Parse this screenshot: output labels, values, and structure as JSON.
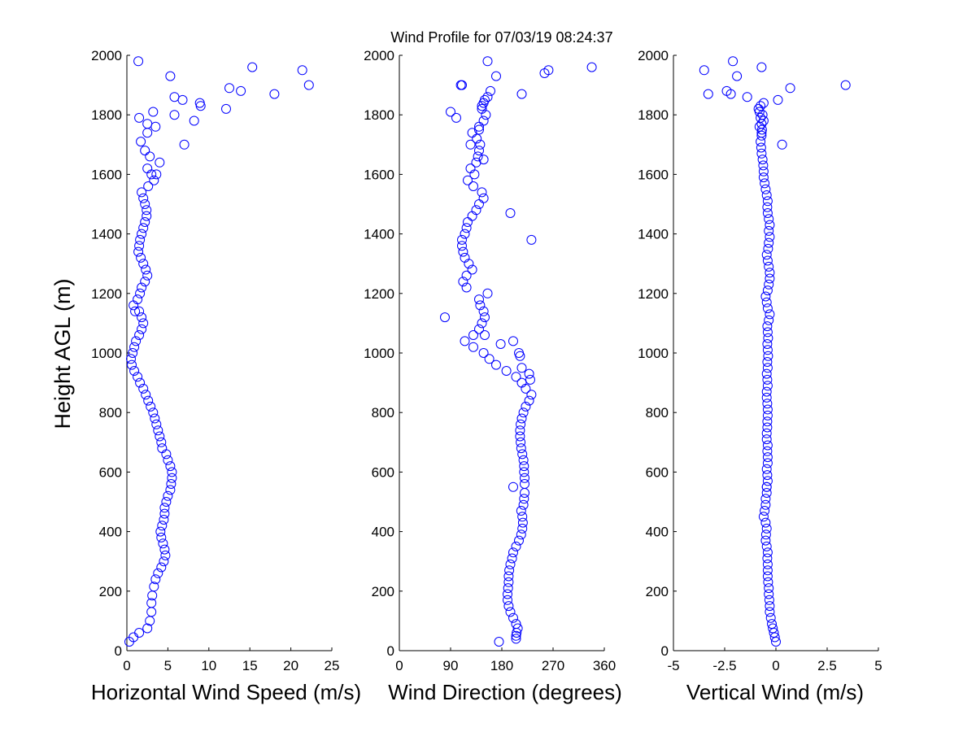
{
  "figure_title": "Wind Profile for  07/03/19 08:24:37",
  "shared_ylabel": "Height AGL (m)",
  "marker_color": "#0000ff",
  "chart_data": [
    {
      "type": "scatter",
      "xlabel": "Horizontal Wind Speed (m/s)",
      "ylabel": "Height AGL (m)",
      "xlim": [
        0,
        25
      ],
      "ylim": [
        0,
        2000
      ],
      "xticks": [
        0,
        5,
        10,
        15,
        20,
        25
      ],
      "xtick_labels": [
        "0",
        "5",
        "10",
        "15",
        "20",
        "25"
      ],
      "yticks": [
        0,
        200,
        400,
        600,
        800,
        1000,
        1200,
        1400,
        1600,
        1800,
        2000
      ],
      "ytick_labels": [
        "0",
        "200",
        "400",
        "600",
        "800",
        "1000",
        "1200",
        "1400",
        "1600",
        "1800",
        "2000"
      ],
      "grid": false,
      "marker": "open-circle",
      "series": [
        {
          "x": [
            0.3,
            0.8,
            1.5,
            2.5,
            2.8,
            3.0,
            3.0,
            3.1,
            3.3,
            3.5,
            3.8,
            4.2,
            4.5,
            4.7,
            4.6,
            4.4,
            4.2,
            4.1,
            4.3,
            4.5,
            4.6,
            4.6,
            4.8,
            5.0,
            5.3,
            5.4,
            5.5,
            5.5,
            5.3,
            5.0,
            4.8,
            4.3,
            4.2,
            4.0,
            3.8,
            3.6,
            3.4,
            3.2,
            2.9,
            2.6,
            2.3,
            2.0,
            1.6,
            1.3,
            0.9,
            0.6,
            0.5,
            0.7,
            0.9,
            1.1,
            1.5,
            1.8,
            2.0,
            1.8,
            1.5,
            1.0,
            0.8,
            1.3,
            1.6,
            1.8,
            2.2,
            2.5,
            2.3,
            2.0,
            1.7,
            1.4,
            1.5,
            1.6,
            1.8,
            2.0,
            2.2,
            2.4,
            2.4,
            2.2,
            2.0,
            1.8,
            2.6,
            3.3,
            3.0,
            3.6,
            4.0,
            2.5,
            2.8,
            2.2,
            1.7,
            2.5,
            3.5,
            1.5,
            2.5,
            3.2,
            5.8,
            8.2,
            9.0,
            5.8,
            6.8,
            7.0,
            12.1,
            8.9,
            12.5,
            13.9,
            18.0,
            21.4,
            22.2,
            15.3,
            5.3,
            1.4
          ],
          "y": [
            30,
            45,
            60,
            75,
            100,
            130,
            160,
            185,
            215,
            240,
            260,
            280,
            300,
            320,
            340,
            360,
            380,
            400,
            420,
            440,
            460,
            480,
            500,
            520,
            540,
            560,
            580,
            600,
            620,
            640,
            660,
            680,
            700,
            720,
            740,
            760,
            780,
            800,
            820,
            840,
            860,
            880,
            900,
            920,
            940,
            960,
            980,
            1000,
            1020,
            1040,
            1060,
            1080,
            1100,
            1120,
            1140,
            1140,
            1160,
            1180,
            1200,
            1220,
            1240,
            1260,
            1280,
            1300,
            1320,
            1340,
            1360,
            1380,
            1400,
            1420,
            1440,
            1460,
            1480,
            1500,
            1520,
            1540,
            1560,
            1580,
            1600,
            1600,
            1640,
            1620,
            1660,
            1680,
            1710,
            1740,
            1760,
            1790,
            1770,
            1810,
            1800,
            1780,
            1830,
            1860,
            1850,
            1700,
            1820,
            1840,
            1890,
            1880,
            1870,
            1950,
            1900,
            1960,
            1930,
            1980
          ]
        }
      ]
    },
    {
      "type": "scatter",
      "xlabel": "Wind Direction (degrees)",
      "ylabel": "",
      "xlim": [
        0,
        360
      ],
      "ylim": [
        0,
        2000
      ],
      "xticks": [
        0,
        90,
        180,
        270,
        360
      ],
      "xtick_labels": [
        "0",
        "90",
        "180",
        "270",
        "360"
      ],
      "yticks": [
        0,
        200,
        400,
        600,
        800,
        1000,
        1200,
        1400,
        1600,
        1800,
        2000
      ],
      "ytick_labels": [
        "0",
        "200",
        "400",
        "600",
        "800",
        "1000",
        "1200",
        "1400",
        "1600",
        "1800",
        "2000"
      ],
      "grid": false,
      "marker": "open-circle",
      "series": [
        {
          "x": [
            175,
            205,
            205,
            206,
            208,
            205,
            200,
            195,
            192,
            190,
            190,
            191,
            192,
            192,
            193,
            195,
            198,
            200,
            205,
            210,
            214,
            216,
            217,
            216,
            214,
            200,
            218,
            219,
            220,
            220,
            220,
            219,
            219,
            218,
            216,
            214,
            213,
            212,
            212,
            213,
            215,
            218,
            222,
            228,
            232,
            222,
            215,
            205,
            188,
            170,
            158,
            148,
            130,
            115,
            130,
            140,
            145,
            150,
            148,
            142,
            140,
            155,
            118,
            112,
            118,
            128,
            122,
            115,
            112,
            110,
            110,
            115,
            118,
            120,
            128,
            135,
            140,
            148,
            145,
            130,
            120,
            132,
            125,
            135,
            138,
            140,
            142,
            136,
            128,
            140,
            148,
            152,
            145,
            148,
            155,
            160,
            150,
            145,
            140,
            125,
            110,
            100,
            90,
            80,
            150,
            178,
            200,
            210,
            212,
            215,
            228,
            230,
            232,
            195,
            148,
            170,
            215,
            108,
            255,
            262,
            338,
            155
          ],
          "y": [
            30,
            40,
            50,
            60,
            75,
            90,
            110,
            130,
            150,
            170,
            190,
            210,
            230,
            250,
            270,
            290,
            310,
            330,
            350,
            370,
            390,
            410,
            430,
            450,
            470,
            550,
            490,
            510,
            530,
            560,
            580,
            600,
            620,
            640,
            660,
            680,
            700,
            720,
            740,
            760,
            780,
            800,
            820,
            840,
            860,
            880,
            900,
            920,
            940,
            960,
            980,
            1000,
            1020,
            1040,
            1060,
            1080,
            1100,
            1120,
            1140,
            1160,
            1180,
            1200,
            1220,
            1240,
            1260,
            1280,
            1300,
            1320,
            1340,
            1360,
            1380,
            1400,
            1420,
            1440,
            1460,
            1480,
            1500,
            1520,
            1540,
            1560,
            1580,
            1600,
            1620,
            1640,
            1660,
            1680,
            1700,
            1720,
            1740,
            1760,
            1780,
            1800,
            1820,
            1840,
            1860,
            1880,
            1850,
            1830,
            1750,
            1700,
            1900,
            1790,
            1810,
            1120,
            1060,
            1030,
            1040,
            1000,
            990,
            950,
            930,
            910,
            1380,
            1470,
            1650,
            1930,
            1870,
            1900,
            1940,
            1950,
            1960,
            1980
          ]
        }
      ]
    },
    {
      "type": "scatter",
      "xlabel": "Vertical Wind (m/s)",
      "ylabel": "",
      "xlim": [
        -5,
        5
      ],
      "ylim": [
        0,
        2000
      ],
      "xticks": [
        -5,
        -2.5,
        0,
        2.5,
        5
      ],
      "xtick_labels": [
        "-5",
        "-2.5",
        "0",
        "2.5",
        "5"
      ],
      "yticks": [
        0,
        200,
        400,
        600,
        800,
        1000,
        1200,
        1400,
        1600,
        1800,
        2000
      ],
      "ytick_labels": [
        "0",
        "200",
        "400",
        "600",
        "800",
        "1000",
        "1200",
        "1400",
        "1600",
        "1800",
        "2000"
      ],
      "grid": false,
      "marker": "open-circle",
      "series": [
        {
          "x": [
            0.0,
            -0.05,
            -0.1,
            -0.15,
            -0.2,
            -0.25,
            -0.3,
            -0.3,
            -0.32,
            -0.35,
            -0.35,
            -0.38,
            -0.4,
            -0.4,
            -0.4,
            -0.42,
            -0.4,
            -0.45,
            -0.5,
            -0.48,
            -0.45,
            -0.5,
            -0.6,
            -0.55,
            -0.5,
            -0.5,
            -0.45,
            -0.45,
            -0.4,
            -0.42,
            -0.45,
            -0.4,
            -0.4,
            -0.42,
            -0.4,
            -0.45,
            -0.45,
            -0.42,
            -0.42,
            -0.4,
            -0.4,
            -0.42,
            -0.45,
            -0.45,
            -0.4,
            -0.42,
            -0.45,
            -0.4,
            -0.42,
            -0.38,
            -0.4,
            -0.42,
            -0.38,
            -0.4,
            -0.42,
            -0.35,
            -0.3,
            -0.4,
            -0.45,
            -0.5,
            -0.4,
            -0.35,
            -0.3,
            -0.3,
            -0.35,
            -0.4,
            -0.45,
            -0.38,
            -0.35,
            -0.3,
            -0.35,
            -0.3,
            -0.35,
            -0.4,
            -0.42,
            -0.4,
            -0.45,
            -0.5,
            -0.55,
            -0.6,
            -0.6,
            -0.62,
            -0.65,
            -0.7,
            -0.72,
            -0.75,
            -0.7,
            -0.68,
            -0.7,
            -0.75,
            -0.8,
            -0.85,
            -0.75,
            -0.6,
            -0.65,
            -0.6,
            -0.45,
            0.3,
            -0.8,
            -0.7,
            0.7,
            0.1,
            -1.4,
            -2.4,
            -2.2,
            -3.3,
            3.4,
            -1.9,
            -3.5,
            -0.7,
            -2.1
          ],
          "y": [
            30,
            45,
            60,
            75,
            90,
            110,
            130,
            150,
            170,
            190,
            210,
            230,
            250,
            270,
            290,
            310,
            330,
            350,
            370,
            390,
            410,
            430,
            450,
            470,
            490,
            510,
            530,
            550,
            570,
            590,
            610,
            630,
            650,
            670,
            690,
            710,
            730,
            750,
            770,
            790,
            810,
            830,
            850,
            870,
            890,
            910,
            930,
            950,
            970,
            990,
            1010,
            1030,
            1050,
            1070,
            1090,
            1110,
            1130,
            1150,
            1170,
            1190,
            1210,
            1230,
            1250,
            1270,
            1290,
            1310,
            1330,
            1350,
            1370,
            1390,
            1410,
            1430,
            1450,
            1470,
            1490,
            1510,
            1530,
            1550,
            1570,
            1590,
            1610,
            1630,
            1650,
            1670,
            1690,
            1710,
            1730,
            1750,
            1770,
            1790,
            1810,
            1820,
            1830,
            1840,
            1800,
            1780,
            550,
            1700,
            1760,
            1740,
            1890,
            1850,
            1860,
            1880,
            1870,
            1870,
            1900,
            1930,
            1950,
            1960,
            1980
          ]
        }
      ]
    }
  ]
}
